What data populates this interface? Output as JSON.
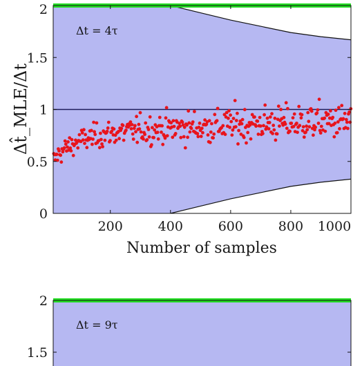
{
  "chart_data": [
    {
      "type": "scatter",
      "title": "",
      "xlabel": "Number of samples",
      "ylabel": "Δt̂_MLE/Δt",
      "annotation": "Δt = 4τ",
      "xlim": [
        10,
        1000
      ],
      "ylim": [
        0,
        2
      ],
      "xticks": [
        "200",
        "400",
        "600",
        "800",
        "1000"
      ],
      "yticks": [
        "0",
        "0.5",
        "1",
        "1.5",
        "2"
      ],
      "reference_line": 1,
      "band_upper": [
        [
          10,
          2.45
        ],
        [
          100,
          2.3
        ],
        [
          200,
          2.18
        ],
        [
          300,
          2.08
        ],
        [
          400,
          2.0
        ],
        [
          500,
          1.93
        ],
        [
          600,
          1.86
        ],
        [
          700,
          1.8
        ],
        [
          800,
          1.74
        ],
        [
          900,
          1.7
        ],
        [
          1000,
          1.67
        ]
      ],
      "band_lower": [
        [
          10,
          -0.45
        ],
        [
          100,
          -0.3
        ],
        [
          200,
          -0.18
        ],
        [
          300,
          -0.08
        ],
        [
          400,
          0.0
        ],
        [
          500,
          0.07
        ],
        [
          600,
          0.14
        ],
        [
          700,
          0.2
        ],
        [
          800,
          0.26
        ],
        [
          900,
          0.3
        ],
        [
          1000,
          0.33
        ]
      ],
      "scatter_trend": {
        "x": [
          10,
          30,
          60,
          100,
          150,
          200,
          300,
          400,
          500,
          600,
          700,
          800,
          900,
          1000
        ],
        "y": [
          0.5,
          0.58,
          0.64,
          0.7,
          0.74,
          0.77,
          0.8,
          0.82,
          0.83,
          0.85,
          0.86,
          0.87,
          0.88,
          0.88
        ]
      },
      "colors": {
        "band": "#b6b8f2",
        "points": "#e8141c",
        "green": "#22dd22",
        "line": "#1c1c5a"
      },
      "grid": false
    },
    {
      "type": "scatter",
      "title": "",
      "xlabel": "",
      "ylabel": "",
      "annotation": "Δt = 9τ",
      "ylim": [
        0,
        2
      ],
      "yticks": [
        "2",
        "1.5"
      ]
    }
  ]
}
